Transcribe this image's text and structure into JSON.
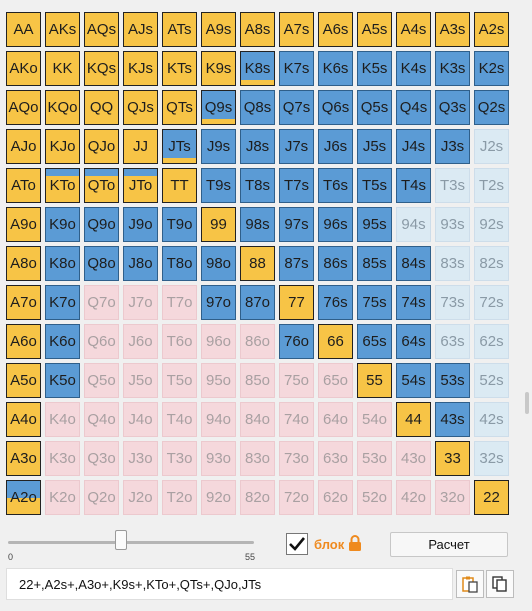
{
  "range_grid": {
    "rows": [
      [
        "AA",
        "AKs",
        "AQs",
        "AJs",
        "ATs",
        "A9s",
        "A8s",
        "A7s",
        "A6s",
        "A5s",
        "A4s",
        "A3s",
        "A2s"
      ],
      [
        "AKo",
        "KK",
        "KQs",
        "KJs",
        "KTs",
        "K9s",
        "K8s",
        "K7s",
        "K6s",
        "K5s",
        "K4s",
        "K3s",
        "K2s"
      ],
      [
        "AQo",
        "KQo",
        "QQ",
        "QJs",
        "QTs",
        "Q9s",
        "Q8s",
        "Q7s",
        "Q6s",
        "Q5s",
        "Q4s",
        "Q3s",
        "Q2s"
      ],
      [
        "AJo",
        "KJo",
        "QJo",
        "JJ",
        "JTs",
        "J9s",
        "J8s",
        "J7s",
        "J6s",
        "J5s",
        "J4s",
        "J3s",
        "J2s"
      ],
      [
        "ATo",
        "KTo",
        "QTo",
        "JTo",
        "TT",
        "T9s",
        "T8s",
        "T7s",
        "T6s",
        "T5s",
        "T4s",
        "T3s",
        "T2s"
      ],
      [
        "A9o",
        "K9o",
        "Q9o",
        "J9o",
        "T9o",
        "99",
        "98s",
        "97s",
        "96s",
        "95s",
        "94s",
        "93s",
        "92s"
      ],
      [
        "A8o",
        "K8o",
        "Q8o",
        "J8o",
        "T8o",
        "98o",
        "88",
        "87s",
        "86s",
        "85s",
        "84s",
        "83s",
        "82s"
      ],
      [
        "A7o",
        "K7o",
        "Q7o",
        "J7o",
        "T7o",
        "97o",
        "87o",
        "77",
        "76s",
        "75s",
        "74s",
        "73s",
        "72s"
      ],
      [
        "A6o",
        "K6o",
        "Q6o",
        "J6o",
        "T6o",
        "96o",
        "86o",
        "76o",
        "66",
        "65s",
        "64s",
        "63s",
        "62s"
      ],
      [
        "A5o",
        "K5o",
        "Q5o",
        "J5o",
        "T5o",
        "95o",
        "85o",
        "75o",
        "65o",
        "55",
        "54s",
        "53s",
        "52s"
      ],
      [
        "A4o",
        "K4o",
        "Q4o",
        "J4o",
        "T4o",
        "94o",
        "84o",
        "74o",
        "64o",
        "54o",
        "44",
        "43s",
        "42s"
      ],
      [
        "A3o",
        "K3o",
        "Q3o",
        "J3o",
        "T3o",
        "93o",
        "83o",
        "73o",
        "63o",
        "53o",
        "43o",
        "33",
        "32s"
      ],
      [
        "A2o",
        "K2o",
        "Q2o",
        "J2o",
        "T2o",
        "92o",
        "82o",
        "72o",
        "62o",
        "52o",
        "42o",
        "32o",
        "22"
      ]
    ],
    "states": [
      [
        "pair",
        "sel",
        "sel",
        "sel",
        "sel",
        "sel",
        "sel",
        "sel",
        "sel",
        "sel",
        "sel",
        "sel",
        "sel"
      ],
      [
        "sel",
        "pair",
        "sel",
        "sel",
        "sel",
        "sel",
        "part",
        "in",
        "in",
        "in",
        "in",
        "in",
        "in"
      ],
      [
        "sel",
        "sel",
        "pair",
        "sel",
        "sel",
        "part",
        "in",
        "in",
        "in",
        "in",
        "in",
        "in",
        "in"
      ],
      [
        "sel",
        "sel",
        "sel",
        "pair",
        "part",
        "in",
        "in",
        "in",
        "in",
        "in",
        "in",
        "in",
        "os"
      ],
      [
        "sel",
        "part",
        "part",
        "part",
        "pair",
        "in",
        "in",
        "in",
        "in",
        "in",
        "in",
        "os",
        "os"
      ],
      [
        "sel",
        "in",
        "in",
        "in",
        "in",
        "pair",
        "in",
        "in",
        "in",
        "in",
        "os",
        "os",
        "os"
      ],
      [
        "sel",
        "in",
        "in",
        "in",
        "in",
        "in",
        "pair",
        "in",
        "in",
        "in",
        "in",
        "os",
        "os"
      ],
      [
        "sel",
        "in",
        "oo",
        "oo",
        "oo",
        "in",
        "in",
        "pair",
        "in",
        "in",
        "in",
        "os",
        "os"
      ],
      [
        "sel",
        "in",
        "oo",
        "oo",
        "oo",
        "oo",
        "oo",
        "in",
        "pair",
        "in",
        "in",
        "os",
        "os"
      ],
      [
        "sel",
        "in",
        "oo",
        "oo",
        "oo",
        "oo",
        "oo",
        "oo",
        "oo",
        "pair",
        "in",
        "in",
        "os"
      ],
      [
        "sel",
        "oo",
        "oo",
        "oo",
        "oo",
        "oo",
        "oo",
        "oo",
        "oo",
        "oo",
        "pair",
        "in",
        "os"
      ],
      [
        "sel",
        "oo",
        "oo",
        "oo",
        "oo",
        "oo",
        "oo",
        "oo",
        "oo",
        "oo",
        "oo",
        "pair",
        "os"
      ],
      [
        "part",
        "oo",
        "oo",
        "oo",
        "oo",
        "oo",
        "oo",
        "oo",
        "oo",
        "oo",
        "oo",
        "oo",
        "pair"
      ]
    ],
    "partial_fill": {
      "1-6": 0.15,
      "2-5": 0.15,
      "3-4": 0.15,
      "4-1": 0.8,
      "4-2": 0.8,
      "4-3": 0.8,
      "12-0": 0.5
    },
    "colors": {
      "selected": "#f7c446",
      "range_blue": "#5b9bd5",
      "off_suited": "#dbeaf3",
      "off_offsuit": "#f5d8dc"
    }
  },
  "slider": {
    "min_label": "0",
    "max_label": "55",
    "value_fraction": 0.46
  },
  "block": {
    "checked": true,
    "label": "блок",
    "icon": "lock-icon"
  },
  "calc_button": {
    "label": "Расчет"
  },
  "range_text": "22+,A2s+,A3o+,K9s+,KTo+,QTs+,QJo,JTs",
  "actions": {
    "paste_icon": "paste-icon",
    "copy_icon": "copy-icon"
  }
}
